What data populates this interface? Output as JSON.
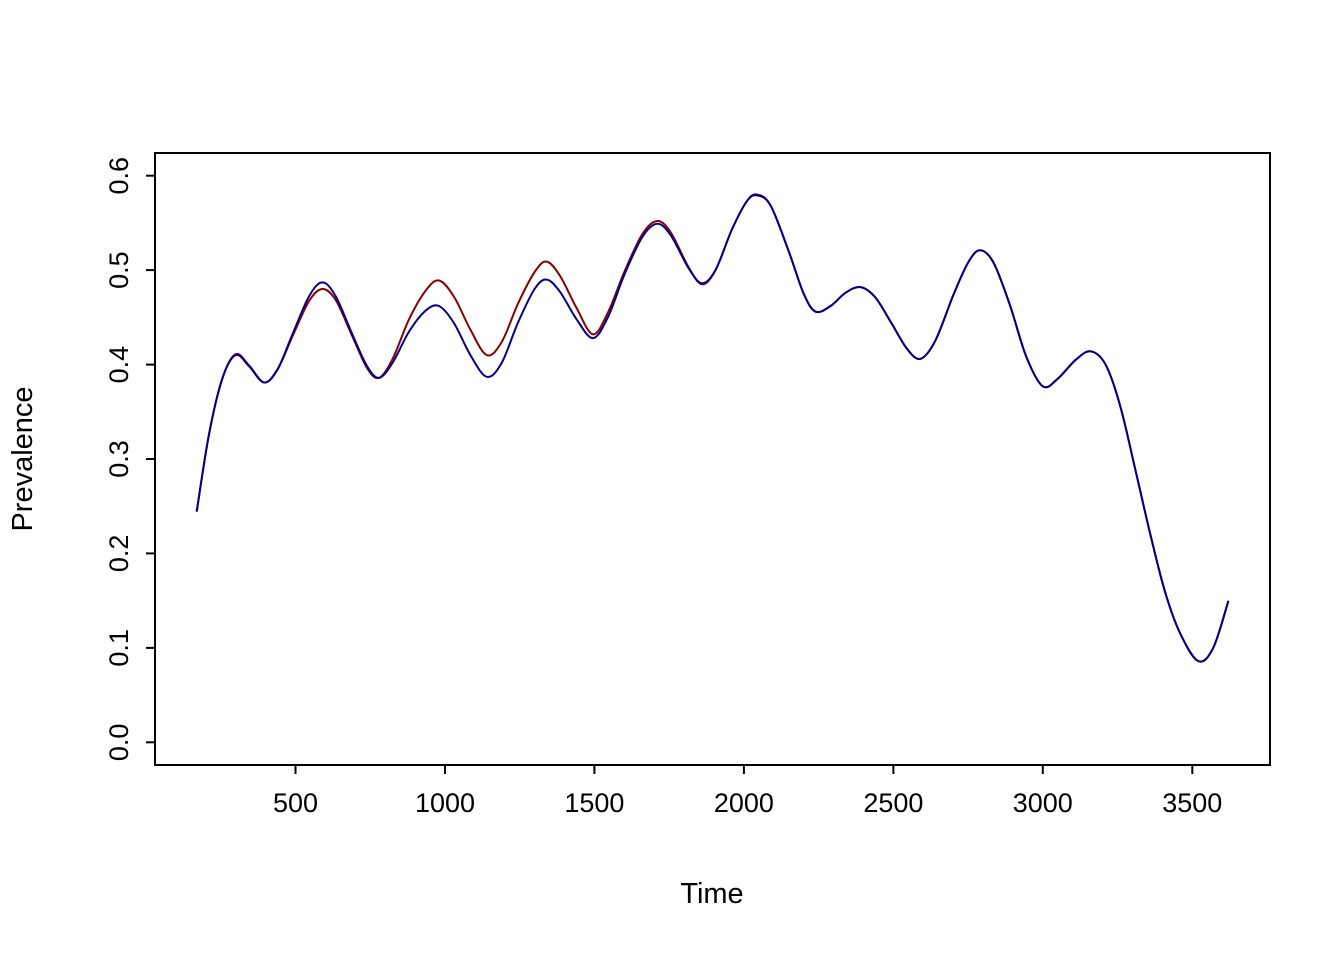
{
  "figure": {
    "background": "#ffffff"
  },
  "chart_data": {
    "type": "line",
    "title": "",
    "xlabel": "Time",
    "ylabel": "Prevalence",
    "xlim": [
      30,
      3760
    ],
    "ylim": [
      -0.024,
      0.624
    ],
    "x_ticks": [
      500,
      1000,
      1500,
      2000,
      2500,
      3000,
      3500
    ],
    "x_tick_labels": [
      "500",
      "1000",
      "1500",
      "2000",
      "2500",
      "3000",
      "3500"
    ],
    "y_ticks": [
      0.0,
      0.1,
      0.2,
      0.3,
      0.4,
      0.5,
      0.6
    ],
    "y_tick_labels": [
      "0.0",
      "0.1",
      "0.2",
      "0.3",
      "0.4",
      "0.5",
      "0.6"
    ],
    "grid": false,
    "legend": "none",
    "box": true,
    "series": [
      {
        "name": "darkred",
        "color": "#8B0000",
        "width": 2,
        "points": [
          [
            170,
            0.245
          ],
          [
            210,
            0.325
          ],
          [
            255,
            0.385
          ],
          [
            300,
            0.411
          ],
          [
            345,
            0.399
          ],
          [
            395,
            0.381
          ],
          [
            440,
            0.395
          ],
          [
            490,
            0.43
          ],
          [
            545,
            0.467
          ],
          [
            590,
            0.48
          ],
          [
            635,
            0.468
          ],
          [
            690,
            0.43
          ],
          [
            740,
            0.396
          ],
          [
            780,
            0.386
          ],
          [
            825,
            0.406
          ],
          [
            880,
            0.448
          ],
          [
            935,
            0.478
          ],
          [
            980,
            0.489
          ],
          [
            1030,
            0.472
          ],
          [
            1085,
            0.437
          ],
          [
            1140,
            0.41
          ],
          [
            1190,
            0.424
          ],
          [
            1245,
            0.465
          ],
          [
            1300,
            0.498
          ],
          [
            1340,
            0.509
          ],
          [
            1385,
            0.494
          ],
          [
            1440,
            0.46
          ],
          [
            1495,
            0.432
          ],
          [
            1545,
            0.455
          ],
          [
            1600,
            0.498
          ],
          [
            1660,
            0.538
          ],
          [
            1710,
            0.552
          ],
          [
            1755,
            0.54
          ],
          [
            1815,
            0.503
          ],
          [
            1860,
            0.485
          ],
          [
            1905,
            0.5
          ],
          [
            1960,
            0.543
          ],
          [
            2010,
            0.573
          ],
          [
            2045,
            0.579
          ],
          [
            2090,
            0.568
          ],
          [
            2150,
            0.52
          ],
          [
            2200,
            0.475
          ],
          [
            2240,
            0.456
          ],
          [
            2290,
            0.462
          ],
          [
            2340,
            0.476
          ],
          [
            2390,
            0.482
          ],
          [
            2440,
            0.471
          ],
          [
            2495,
            0.443
          ],
          [
            2545,
            0.417
          ],
          [
            2590,
            0.406
          ],
          [
            2640,
            0.425
          ],
          [
            2700,
            0.473
          ],
          [
            2750,
            0.508
          ],
          [
            2790,
            0.521
          ],
          [
            2835,
            0.508
          ],
          [
            2890,
            0.463
          ],
          [
            2945,
            0.408
          ],
          [
            3000,
            0.377
          ],
          [
            3050,
            0.385
          ],
          [
            3110,
            0.405
          ],
          [
            3160,
            0.414
          ],
          [
            3210,
            0.4
          ],
          [
            3260,
            0.355
          ],
          [
            3310,
            0.288
          ],
          [
            3360,
            0.22
          ],
          [
            3410,
            0.158
          ],
          [
            3460,
            0.115
          ],
          [
            3520,
            0.086
          ],
          [
            3570,
            0.1
          ],
          [
            3620,
            0.149
          ]
        ]
      },
      {
        "name": "darkblue",
        "color": "#00008B",
        "width": 2,
        "points": [
          [
            170,
            0.245
          ],
          [
            210,
            0.325
          ],
          [
            255,
            0.385
          ],
          [
            300,
            0.41
          ],
          [
            345,
            0.398
          ],
          [
            395,
            0.381
          ],
          [
            440,
            0.395
          ],
          [
            490,
            0.432
          ],
          [
            545,
            0.472
          ],
          [
            590,
            0.487
          ],
          [
            635,
            0.472
          ],
          [
            690,
            0.432
          ],
          [
            740,
            0.398
          ],
          [
            780,
            0.386
          ],
          [
            825,
            0.402
          ],
          [
            880,
            0.435
          ],
          [
            935,
            0.457
          ],
          [
            980,
            0.462
          ],
          [
            1030,
            0.444
          ],
          [
            1085,
            0.41
          ],
          [
            1140,
            0.387
          ],
          [
            1190,
            0.402
          ],
          [
            1245,
            0.445
          ],
          [
            1300,
            0.48
          ],
          [
            1340,
            0.49
          ],
          [
            1385,
            0.477
          ],
          [
            1440,
            0.448
          ],
          [
            1495,
            0.428
          ],
          [
            1545,
            0.45
          ],
          [
            1600,
            0.495
          ],
          [
            1660,
            0.535
          ],
          [
            1710,
            0.549
          ],
          [
            1755,
            0.537
          ],
          [
            1815,
            0.502
          ],
          [
            1860,
            0.486
          ],
          [
            1905,
            0.5
          ],
          [
            1960,
            0.543
          ],
          [
            2010,
            0.573
          ],
          [
            2045,
            0.58
          ],
          [
            2090,
            0.568
          ],
          [
            2150,
            0.52
          ],
          [
            2200,
            0.475
          ],
          [
            2240,
            0.456
          ],
          [
            2290,
            0.462
          ],
          [
            2340,
            0.476
          ],
          [
            2390,
            0.482
          ],
          [
            2440,
            0.471
          ],
          [
            2495,
            0.443
          ],
          [
            2545,
            0.417
          ],
          [
            2590,
            0.406
          ],
          [
            2640,
            0.425
          ],
          [
            2700,
            0.473
          ],
          [
            2750,
            0.508
          ],
          [
            2790,
            0.521
          ],
          [
            2835,
            0.508
          ],
          [
            2890,
            0.463
          ],
          [
            2945,
            0.408
          ],
          [
            3000,
            0.377
          ],
          [
            3050,
            0.385
          ],
          [
            3110,
            0.405
          ],
          [
            3160,
            0.414
          ],
          [
            3210,
            0.4
          ],
          [
            3260,
            0.355
          ],
          [
            3310,
            0.288
          ],
          [
            3360,
            0.22
          ],
          [
            3410,
            0.158
          ],
          [
            3460,
            0.115
          ],
          [
            3520,
            0.086
          ],
          [
            3570,
            0.1
          ],
          [
            3620,
            0.149
          ]
        ]
      }
    ]
  }
}
